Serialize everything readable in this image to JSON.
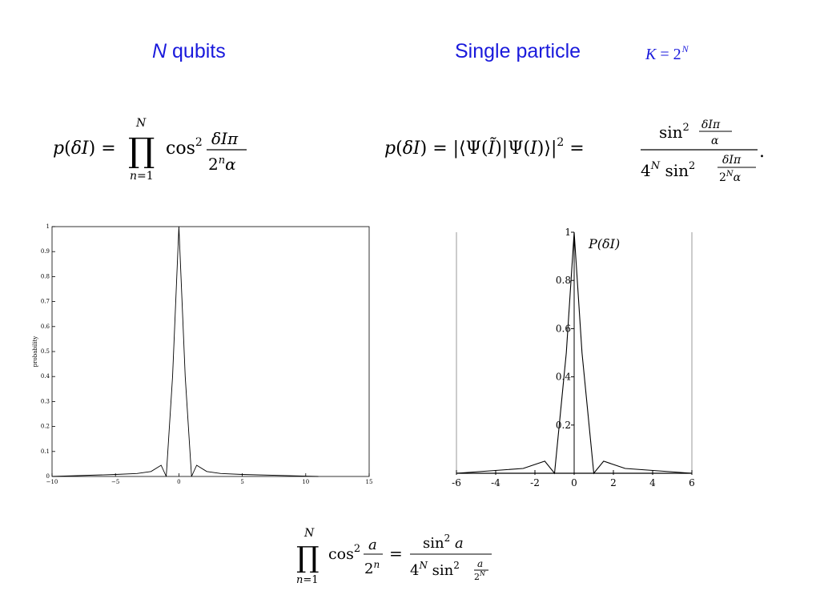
{
  "headers": {
    "left_var": "N",
    "left_rest": " qubits",
    "right": "Single particle",
    "k_lhs": "K",
    "k_eq": " = 2",
    "k_exp": "N"
  },
  "equations": {
    "left": "p(δI) = ∏_{n=1}^{N} cos² (δIπ / 2ⁿα)",
    "right": "p(δI) = |⟨Ψ(Ĩ)|Ψ(I)⟩|² = sin²(δIπ/α) / (4^N sin²(δIπ/(2^N α))).",
    "bottom": "∏_{n=1}^{N} cos² (a/2ⁿ) = sin² a / (4^N sin² (a/2^N))"
  },
  "chart_data": [
    {
      "type": "line",
      "title": "",
      "xlabel": "",
      "ylabel": "probability",
      "xlim": [
        -10,
        15
      ],
      "ylim": [
        0,
        1
      ],
      "x_ticks": [
        "−10",
        "−5",
        "0",
        "5",
        "10",
        "15"
      ],
      "y_ticks": [
        "0",
        "0.1",
        "0.2",
        "0.3",
        "0.4",
        "0.5",
        "0.6",
        "0.7",
        "0.8",
        "0.9",
        "1"
      ],
      "grid": false,
      "series": [
        {
          "points": [
            [
              -10,
              0
            ],
            [
              -5,
              0.008
            ],
            [
              -3.3,
              0.012
            ],
            [
              -2.2,
              0.02
            ],
            [
              -1.4,
              0.045
            ],
            [
              -1,
              0
            ],
            [
              -0.5,
              0.4
            ],
            [
              0,
              1
            ],
            [
              0.5,
              0.4
            ],
            [
              1,
              0
            ],
            [
              1.4,
              0.045
            ],
            [
              2.2,
              0.02
            ],
            [
              3.3,
              0.012
            ],
            [
              5,
              0.008
            ],
            [
              11,
              0
            ]
          ]
        }
      ]
    },
    {
      "type": "line",
      "title": "",
      "xlabel": "",
      "ylabel": "P(δI)",
      "xlim": [
        -6,
        6
      ],
      "ylim": [
        0,
        1
      ],
      "x_ticks": [
        "-6",
        "-4",
        "-2",
        "0",
        "2",
        "4",
        "6"
      ],
      "y_ticks": [
        "0.2",
        "0.4",
        "0.6",
        "0.8",
        "1"
      ],
      "grid": false,
      "series": [
        {
          "points": [
            [
              -6,
              0
            ],
            [
              -2.6,
              0.02
            ],
            [
              -1.5,
              0.05
            ],
            [
              -1,
              0
            ],
            [
              -0.4,
              0.5
            ],
            [
              0,
              1
            ],
            [
              0.4,
              0.5
            ],
            [
              1,
              0
            ],
            [
              1.5,
              0.05
            ],
            [
              2.6,
              0.02
            ],
            [
              6,
              0
            ]
          ]
        }
      ]
    }
  ]
}
